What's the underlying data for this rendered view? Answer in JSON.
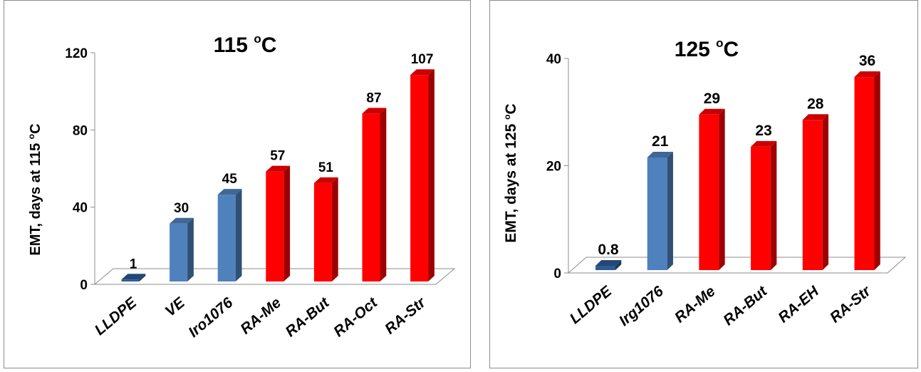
{
  "colors": {
    "baseline": "#2d5a92",
    "control": "#4f81bd",
    "ra": "#ff0000"
  },
  "chart_data": [
    {
      "type": "bar",
      "title": "115 ",
      "title_sup": "o",
      "title_tail": "C",
      "ylabel": "EMT, days at  115 ",
      "ylabel_sup": "o",
      "ylabel_tail": "C",
      "ylim": [
        0,
        120
      ],
      "yticks": [
        "0",
        "40",
        "80",
        "120"
      ],
      "tick_values": [
        0,
        40,
        80,
        120
      ],
      "categories": [
        "LLDPE",
        "VE",
        "Iro1076",
        "RA-Me",
        "RA-But",
        "RA-Oct",
        "RA-Str"
      ],
      "values": [
        1,
        30,
        45,
        57,
        51,
        87,
        107
      ],
      "value_labels": [
        "1",
        "30",
        "45",
        "57",
        "51",
        "87",
        "107"
      ],
      "groups": [
        "baseline",
        "control",
        "control",
        "ra",
        "ra",
        "ra",
        "ra"
      ],
      "grid": false,
      "legend": "none"
    },
    {
      "type": "bar",
      "title": "125 ",
      "title_sup": "o",
      "title_tail": "C",
      "ylabel": "EMT, days at 125 ",
      "ylabel_sup": "o",
      "ylabel_tail": "C",
      "ylim": [
        0,
        40
      ],
      "yticks": [
        "0",
        "20",
        "40"
      ],
      "tick_values": [
        0,
        20,
        40
      ],
      "categories": [
        "LLDPE",
        "Irg1076",
        "RA-Me",
        "RA-But",
        "RA-EH",
        "RA-Str"
      ],
      "values": [
        0.8,
        21,
        29,
        23,
        28,
        36
      ],
      "value_labels": [
        "0.8",
        "21",
        "29",
        "23",
        "28",
        "36"
      ],
      "groups": [
        "baseline",
        "control",
        "ra",
        "ra",
        "ra",
        "ra"
      ],
      "grid": false,
      "legend": "none"
    }
  ]
}
